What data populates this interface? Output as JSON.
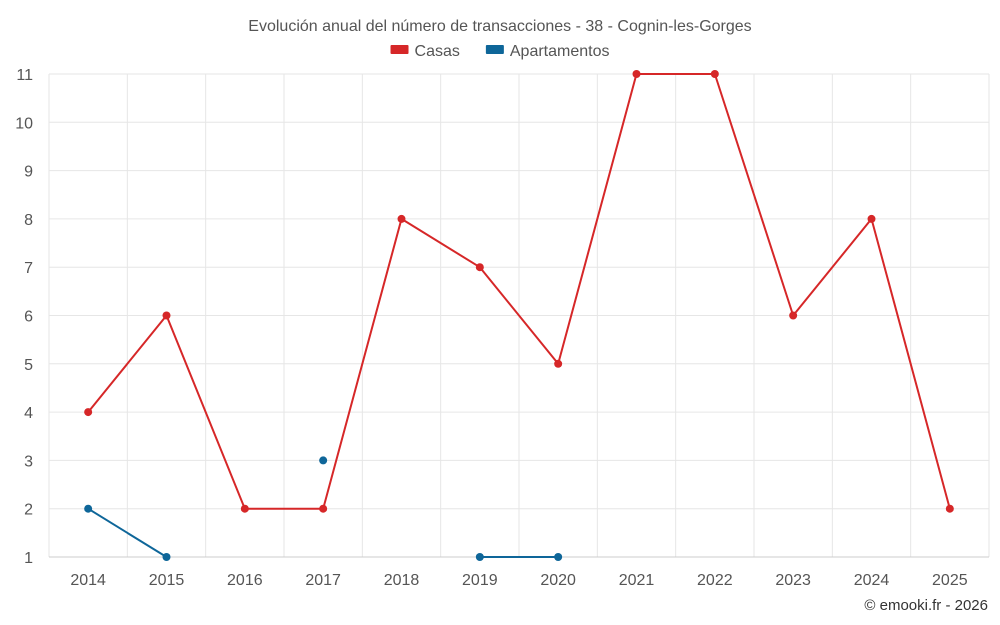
{
  "chart_data": {
    "type": "line",
    "title": "Evolución anual del número de transacciones - 38 - Cognin-les-Gorges",
    "x": [
      "2014",
      "2015",
      "2016",
      "2017",
      "2018",
      "2019",
      "2020",
      "2021",
      "2022",
      "2023",
      "2024",
      "2025"
    ],
    "ylim": [
      1,
      11
    ],
    "yticks": [
      1,
      2,
      3,
      4,
      5,
      6,
      7,
      8,
      9,
      10,
      11
    ],
    "grid": true,
    "legend_position": "top-center",
    "series": [
      {
        "name": "Casas",
        "color": "#d62728",
        "values": [
          4,
          6,
          2,
          2,
          8,
          7,
          5,
          11,
          11,
          6,
          8,
          2
        ]
      },
      {
        "name": "Apartamentos",
        "color": "#0e6699",
        "values": [
          2,
          1,
          null,
          3,
          null,
          1,
          1,
          null,
          null,
          null,
          null,
          null
        ]
      }
    ]
  },
  "credit": "© emooki.fr - 2026"
}
